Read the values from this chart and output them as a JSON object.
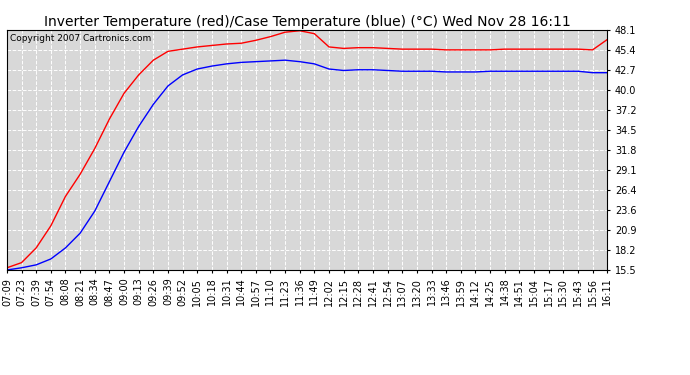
{
  "title": "Inverter Temperature (red)/Case Temperature (blue) (°C) Wed Nov 28 16:11",
  "copyright": "Copyright 2007 Cartronics.com",
  "yticks": [
    15.5,
    18.2,
    20.9,
    23.6,
    26.4,
    29.1,
    31.8,
    34.5,
    37.2,
    40.0,
    42.7,
    45.4,
    48.1
  ],
  "ylim": [
    15.5,
    48.1
  ],
  "xtick_labels": [
    "07:09",
    "07:23",
    "07:39",
    "07:54",
    "08:08",
    "08:21",
    "08:34",
    "08:47",
    "09:00",
    "09:13",
    "09:26",
    "09:39",
    "09:52",
    "10:05",
    "10:18",
    "10:31",
    "10:44",
    "10:57",
    "11:10",
    "11:23",
    "11:36",
    "11:49",
    "12:02",
    "12:15",
    "12:28",
    "12:41",
    "12:54",
    "13:07",
    "13:20",
    "13:33",
    "13:46",
    "13:59",
    "14:12",
    "14:25",
    "14:38",
    "14:51",
    "15:04",
    "15:17",
    "15:30",
    "15:43",
    "15:56",
    "16:11"
  ],
  "red_data": [
    15.8,
    16.5,
    18.5,
    21.5,
    25.5,
    28.5,
    32.0,
    36.0,
    39.5,
    42.0,
    44.0,
    45.2,
    45.5,
    45.8,
    46.0,
    46.2,
    46.3,
    46.7,
    47.2,
    47.8,
    48.0,
    47.6,
    45.8,
    45.6,
    45.7,
    45.7,
    45.6,
    45.5,
    45.5,
    45.5,
    45.4,
    45.4,
    45.4,
    45.4,
    45.5,
    45.5,
    45.5,
    45.5,
    45.5,
    45.5,
    45.4,
    46.8
  ],
  "blue_data": [
    15.5,
    15.8,
    16.2,
    17.0,
    18.5,
    20.5,
    23.5,
    27.5,
    31.5,
    35.0,
    38.0,
    40.5,
    42.0,
    42.8,
    43.2,
    43.5,
    43.7,
    43.8,
    43.9,
    44.0,
    43.8,
    43.5,
    42.8,
    42.6,
    42.7,
    42.7,
    42.6,
    42.5,
    42.5,
    42.5,
    42.4,
    42.4,
    42.4,
    42.5,
    42.5,
    42.5,
    42.5,
    42.5,
    42.5,
    42.5,
    42.3,
    42.3
  ],
  "red_color": "#ff0000",
  "blue_color": "#0000ff",
  "bg_color": "#ffffff",
  "plot_bg_color": "#d8d8d8",
  "grid_color": "#ffffff",
  "title_fontsize": 10,
  "tick_fontsize": 7,
  "copyright_fontsize": 6.5
}
